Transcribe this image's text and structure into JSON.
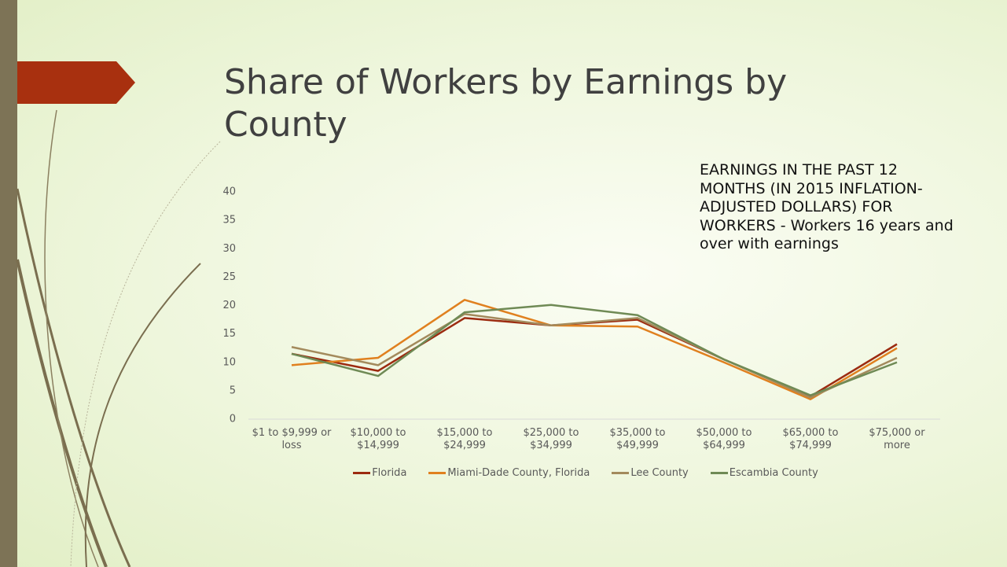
{
  "chart_data": {
    "type": "line",
    "title": "Share of Workers by Earnings by County",
    "annotation": "EARNINGS IN THE PAST 12 MONTHS (IN 2015 INFLATION-ADJUSTED DOLLARS) FOR WORKERS - Workers 16 years and over with earnings",
    "categories": [
      "$1 to $9,999 or loss",
      "$10,000 to $14,999",
      "$15,000 to $24,999",
      "$25,000 to $34,999",
      "$35,000 to $49,999",
      "$50,000 to $64,999",
      "$65,000 to $74,999",
      "$75,000 or more"
    ],
    "series": [
      {
        "name": "Florida",
        "color": "#9c2b10",
        "values": [
          11.5,
          8.5,
          17.8,
          16.5,
          17.5,
          10.5,
          4,
          13.2
        ]
      },
      {
        "name": "Miami-Dade County, Florida",
        "color": "#e0801f",
        "values": [
          9.5,
          10.8,
          21,
          16.5,
          16.3,
          10,
          3.5,
          12.5
        ]
      },
      {
        "name": "Lee County",
        "color": "#a38a5c",
        "values": [
          12.7,
          9.5,
          18.5,
          16.5,
          17.8,
          10.5,
          3.8,
          10.8
        ]
      },
      {
        "name": "Escambia County",
        "color": "#6f8a55",
        "values": [
          11.5,
          7.6,
          18.8,
          20.1,
          18.3,
          10.5,
          4.2,
          10
        ]
      }
    ],
    "ylim": [
      0,
      40
    ],
    "yticks": [
      0,
      5,
      10,
      15,
      20,
      25,
      30,
      35,
      40
    ],
    "grid": false
  }
}
